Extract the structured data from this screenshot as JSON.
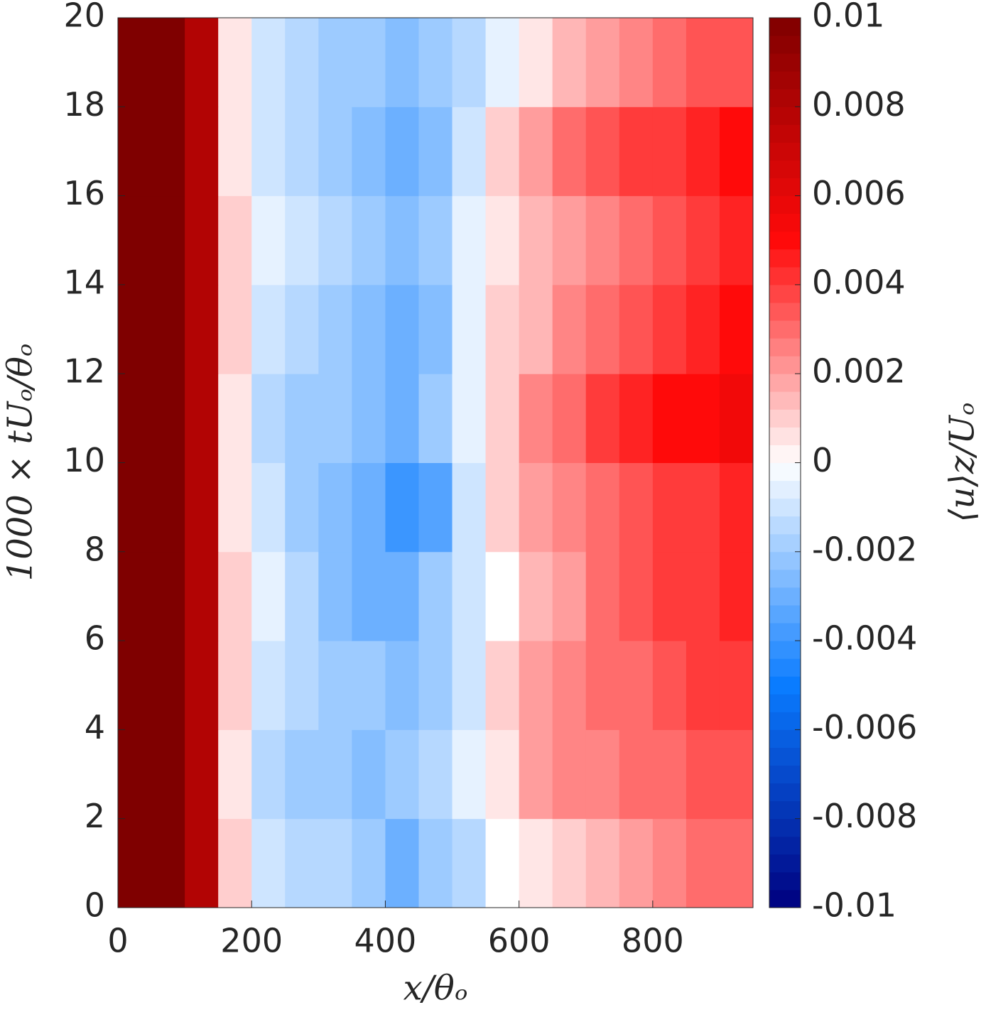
{
  "chart_data": {
    "type": "heatmap",
    "xlabel": "x/θₒ",
    "ylabel": "1000 × tUₒ/θₒ",
    "colorbar_label": "⟨u⟩z/Uₒ",
    "x": [
      25,
      75,
      125,
      175,
      225,
      275,
      325,
      375,
      425,
      475,
      525,
      575,
      625,
      675,
      725,
      775,
      825,
      875,
      925
    ],
    "y": [
      1,
      3,
      5,
      7,
      9,
      11,
      13,
      15,
      17,
      19
    ],
    "values": [
      [
        0.01,
        0.01,
        0.008,
        0.001,
        -0.001,
        -0.0015,
        -0.0015,
        -0.002,
        -0.003,
        -0.002,
        -0.0015,
        0,
        0.0005,
        0.001,
        0.0015,
        0.002,
        0.0025,
        0.003,
        0.003
      ],
      [
        0.01,
        0.01,
        0.008,
        0.0005,
        -0.0015,
        -0.002,
        -0.002,
        -0.0025,
        -0.002,
        -0.0015,
        -0.0005,
        0.0005,
        0.002,
        0.0025,
        0.0025,
        0.003,
        0.003,
        0.0035,
        0.0035
      ],
      [
        0.01,
        0.01,
        0.008,
        0.001,
        -0.001,
        -0.0015,
        -0.002,
        -0.002,
        -0.0025,
        -0.002,
        -0.001,
        0.001,
        0.002,
        0.0025,
        0.003,
        0.003,
        0.0035,
        0.004,
        0.004
      ],
      [
        0.01,
        0.01,
        0.008,
        0.001,
        -0.0005,
        -0.0015,
        -0.0025,
        -0.003,
        -0.003,
        -0.002,
        -0.001,
        0,
        0.0015,
        0.002,
        0.003,
        0.0035,
        0.004,
        0.004,
        0.0045
      ],
      [
        0.01,
        0.01,
        0.008,
        0.0005,
        -0.001,
        -0.002,
        -0.0025,
        -0.003,
        -0.004,
        -0.0035,
        -0.001,
        0.001,
        0.002,
        0.0025,
        0.003,
        0.0035,
        0.004,
        0.004,
        0.0045
      ],
      [
        0.01,
        0.01,
        0.008,
        0.0005,
        -0.0015,
        -0.002,
        -0.002,
        -0.0025,
        -0.003,
        -0.002,
        -0.0005,
        0.001,
        0.0025,
        0.003,
        0.004,
        0.0045,
        0.005,
        0.005,
        0.0055
      ],
      [
        0.01,
        0.01,
        0.008,
        0.001,
        -0.001,
        -0.0015,
        -0.002,
        -0.0025,
        -0.003,
        -0.0025,
        -0.0005,
        0.001,
        0.0015,
        0.0025,
        0.003,
        0.0035,
        0.004,
        0.0045,
        0.005
      ],
      [
        0.01,
        0.01,
        0.008,
        0.001,
        -0.0005,
        -0.001,
        -0.0015,
        -0.002,
        -0.0025,
        -0.002,
        -0.0005,
        0.0005,
        0.0015,
        0.002,
        0.0025,
        0.003,
        0.0035,
        0.004,
        0.0045
      ],
      [
        0.01,
        0.01,
        0.008,
        0.0005,
        -0.001,
        -0.0015,
        -0.002,
        -0.0025,
        -0.003,
        -0.0025,
        -0.001,
        0.001,
        0.002,
        0.003,
        0.0035,
        0.004,
        0.004,
        0.0045,
        0.005
      ],
      [
        0.01,
        0.01,
        0.008,
        0.0005,
        -0.001,
        -0.0015,
        -0.002,
        -0.002,
        -0.0025,
        -0.002,
        -0.0015,
        -0.0005,
        0.0005,
        0.0015,
        0.002,
        0.0025,
        0.003,
        0.0035,
        0.0035
      ]
    ],
    "xlim": [
      0,
      950
    ],
    "ylim": [
      0,
      20
    ],
    "xticks": [
      0,
      200,
      400,
      600,
      800
    ],
    "yticks": [
      0,
      2,
      4,
      6,
      8,
      10,
      12,
      14,
      16,
      18,
      20
    ],
    "clim": [
      -0.01,
      0.01
    ],
    "cticks": [
      -0.01,
      -0.008,
      -0.006,
      -0.004,
      -0.002,
      0,
      0.002,
      0.004,
      0.006,
      0.008,
      0.01
    ],
    "colormap": [
      "#00007f",
      "#0a7cff",
      "#ffffff",
      "#ff0a0a",
      "#7f0000"
    ]
  }
}
